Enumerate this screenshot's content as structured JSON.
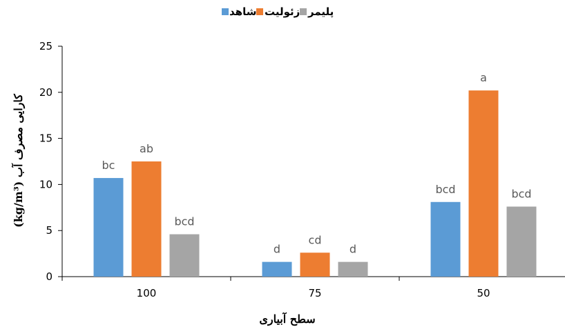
{
  "chart_data": {
    "type": "bar",
    "categories": [
      "100",
      "75",
      "50"
    ],
    "series": [
      {
        "name": "شاهد",
        "color": "#5B9BD5",
        "values": [
          10.7,
          1.6,
          8.1
        ],
        "labels": [
          "bc",
          "d",
          "bcd"
        ]
      },
      {
        "name": "زئولیت",
        "color": "#ED7D31",
        "values": [
          12.5,
          2.6,
          20.2
        ],
        "labels": [
          "ab",
          "cd",
          "a"
        ]
      },
      {
        "name": "پلیمر",
        "color": "#A5A5A5",
        "values": [
          4.6,
          1.6,
          7.6
        ],
        "labels": [
          "bcd",
          "d",
          "bcd"
        ]
      }
    ],
    "xlabel": "سطح آبیاری",
    "ylabel": "(kg/m³) کارایی مصرف آب",
    "ylim": [
      0,
      25
    ],
    "yticks": [
      "0",
      "5",
      "10",
      "15",
      "20",
      "25"
    ],
    "grid": false,
    "legend": "top-center"
  }
}
